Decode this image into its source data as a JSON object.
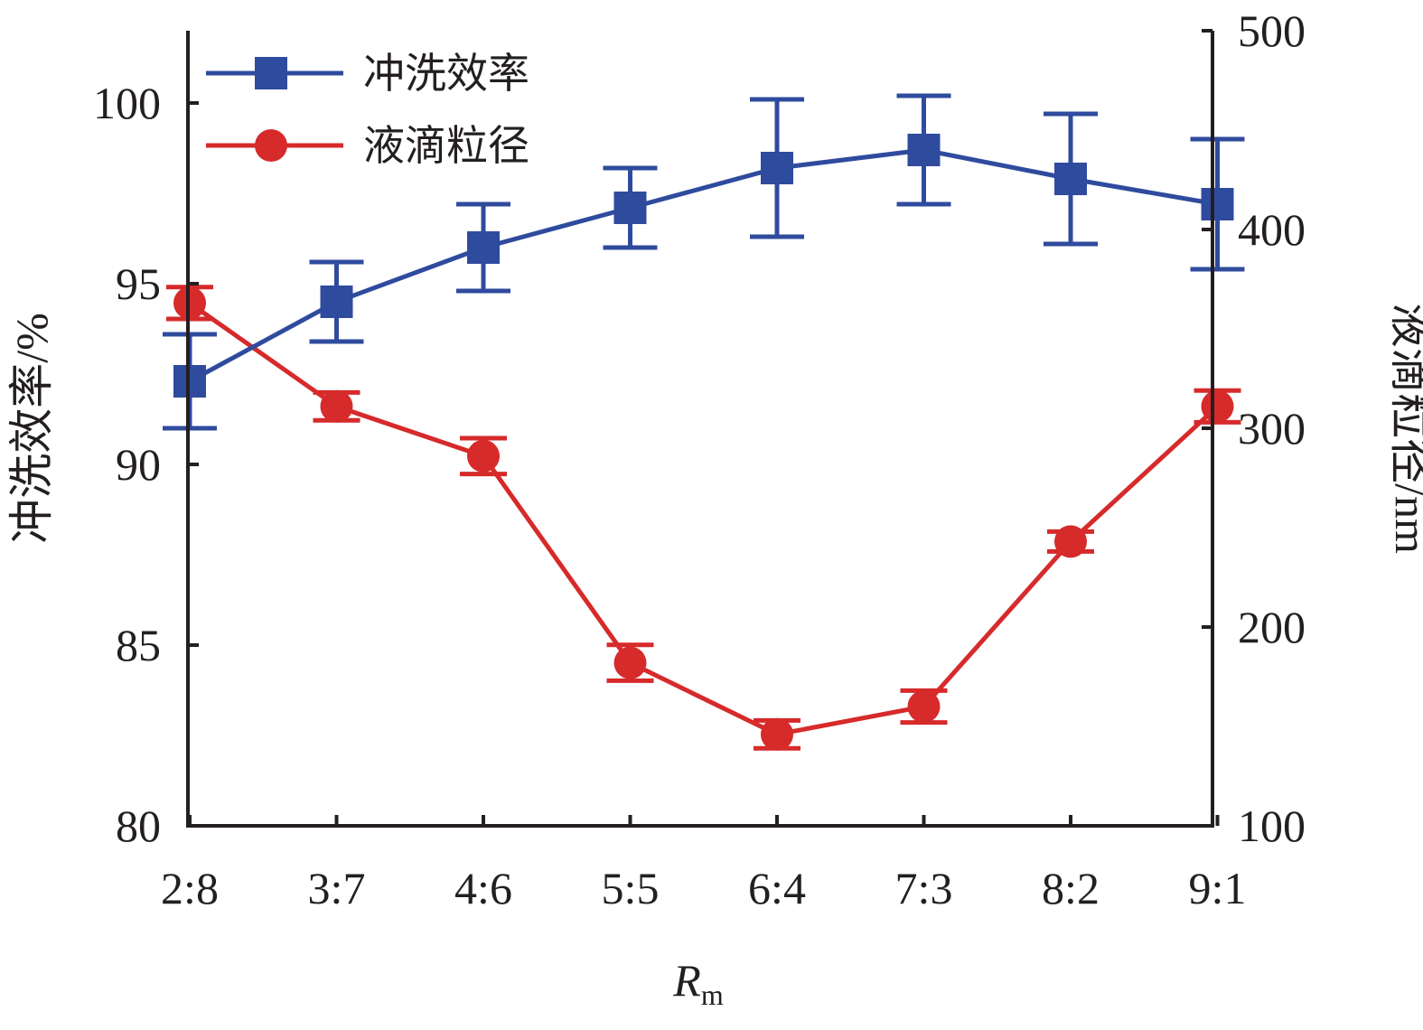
{
  "chart_data": {
    "type": "line",
    "categories": [
      "2:8",
      "3:7",
      "4:6",
      "5:5",
      "6:4",
      "7:3",
      "8:2",
      "9:1"
    ],
    "xlabel": "R",
    "xlabel_sub": "m",
    "left_axis": {
      "label": "冲洗效率/%",
      "range": [
        80,
        102
      ],
      "ticks": [
        "80",
        "85",
        "90",
        "95",
        "100"
      ]
    },
    "right_axis": {
      "label": "液滴粒径/nm",
      "range": [
        100,
        500
      ],
      "ticks": [
        "100",
        "200",
        "300",
        "400",
        "500"
      ]
    },
    "series": [
      {
        "name": "冲洗效率",
        "axis": "left",
        "color": "#2f4b9e",
        "marker": "square",
        "values": [
          92.3,
          94.5,
          96.0,
          97.1,
          98.2,
          98.7,
          97.9,
          97.2
        ],
        "errors": [
          1.3,
          1.1,
          1.2,
          1.1,
          1.9,
          1.5,
          1.8,
          1.8
        ]
      },
      {
        "name": "液滴粒径",
        "axis": "right",
        "color": "#d62a2b",
        "marker": "circle",
        "values": [
          363,
          311,
          286,
          182,
          146,
          160,
          243,
          311
        ],
        "errors": [
          8,
          7,
          9,
          9,
          7,
          8,
          5,
          8
        ]
      }
    ],
    "grid": false,
    "legend_position": "top-left"
  }
}
